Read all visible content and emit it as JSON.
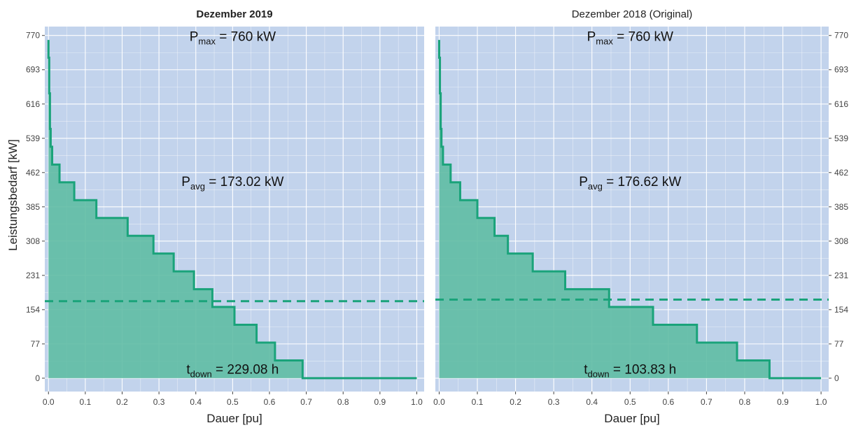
{
  "colors": {
    "panel_bg": "#c2d3ec",
    "grid": "#ffffff",
    "curve": "#1aa37a",
    "fill": "#5fbca4",
    "avg_line": "#1aa37a",
    "text": "#222222",
    "tick": "#444444"
  },
  "chart_data": [
    {
      "type": "area",
      "title": "Dezember 2019",
      "title_bold": true,
      "xlabel": "Dauer [pu]",
      "ylabel": "Leistungsbedarf  [kW]",
      "xlim": [
        -0.01,
        1.02
      ],
      "ylim": [
        -30,
        790
      ],
      "x_ticks": [
        0.0,
        0.1,
        0.2,
        0.3,
        0.4,
        0.5,
        0.6,
        0.7,
        0.8,
        0.9,
        1.0
      ],
      "x_tick_labels": [
        "0.0",
        "0.1",
        "0.2",
        "0.3",
        "0.4",
        "0.5",
        "0.6",
        "0.7",
        "0.8",
        "0.9",
        "1.0"
      ],
      "y_ticks": [
        0,
        77,
        154,
        231,
        308,
        385,
        462,
        539,
        616,
        693,
        770
      ],
      "y_tick_labels": [
        "0",
        "77",
        "154",
        "231",
        "308",
        "385",
        "462",
        "539",
        "616",
        "693",
        "770"
      ],
      "y_axis_side": "left",
      "grid": true,
      "avg_value": 173.02,
      "annotations": {
        "pmax": {
          "base": "P",
          "sub": "max",
          "rest": " = 760 kW",
          "x": 0.5,
          "y": 758
        },
        "pavg": {
          "base": "P",
          "sub": "avg",
          "rest": " = 173.02 kW",
          "x": 0.5,
          "y": 432
        },
        "tdown": {
          "base": "t",
          "sub": "down",
          "rest": " = 229.08 h",
          "x": 0.5,
          "y": 10
        }
      },
      "series": [
        {
          "x": [
            0.0,
            0.0,
            0.002,
            0.002,
            0.004,
            0.004,
            0.006,
            0.006,
            0.01,
            0.01,
            0.03,
            0.03,
            0.07,
            0.07,
            0.13,
            0.13,
            0.215,
            0.215,
            0.285,
            0.285,
            0.34,
            0.34,
            0.395,
            0.395,
            0.445,
            0.445,
            0.505,
            0.505,
            0.565,
            0.565,
            0.615,
            0.615,
            0.69,
            0.69,
            1.0
          ],
          "y": [
            760,
            720,
            720,
            640,
            640,
            560,
            560,
            520,
            520,
            480,
            480,
            440,
            440,
            400,
            400,
            360,
            360,
            320,
            320,
            280,
            280,
            240,
            240,
            200,
            200,
            160,
            160,
            120,
            120,
            80,
            80,
            40,
            40,
            0,
            0
          ]
        }
      ]
    },
    {
      "type": "area",
      "title": "Dezember 2018 (Original)",
      "title_bold": false,
      "xlabel": "Dauer [pu]",
      "ylabel": "",
      "xlim": [
        -0.01,
        1.02
      ],
      "ylim": [
        -30,
        790
      ],
      "x_ticks": [
        0.0,
        0.1,
        0.2,
        0.3,
        0.4,
        0.5,
        0.6,
        0.7,
        0.8,
        0.9,
        1.0
      ],
      "x_tick_labels": [
        "0.0",
        "0.1",
        "0.2",
        "0.3",
        "0.4",
        "0.5",
        "0.6",
        "0.7",
        "0.8",
        "0.9",
        "1.0"
      ],
      "y_ticks": [
        0,
        77,
        154,
        231,
        308,
        385,
        462,
        539,
        616,
        693,
        770
      ],
      "y_tick_labels": [
        "0",
        "77",
        "154",
        "231",
        "308",
        "385",
        "462",
        "539",
        "616",
        "693",
        "770"
      ],
      "y_axis_side": "right",
      "grid": true,
      "avg_value": 176.62,
      "annotations": {
        "pmax": {
          "base": "P",
          "sub": "max",
          "rest": " = 760 kW",
          "x": 0.5,
          "y": 758
        },
        "pavg": {
          "base": "P",
          "sub": "avg",
          "rest": " = 176.62 kW",
          "x": 0.5,
          "y": 432
        },
        "tdown": {
          "base": "t",
          "sub": "down",
          "rest": " = 103.83 h",
          "x": 0.5,
          "y": 10
        }
      },
      "series": [
        {
          "x": [
            0.0,
            0.0,
            0.002,
            0.002,
            0.004,
            0.004,
            0.006,
            0.006,
            0.01,
            0.01,
            0.03,
            0.03,
            0.055,
            0.055,
            0.1,
            0.1,
            0.145,
            0.145,
            0.18,
            0.18,
            0.245,
            0.245,
            0.33,
            0.33,
            0.445,
            0.445,
            0.56,
            0.56,
            0.675,
            0.675,
            0.78,
            0.78,
            0.865,
            0.865,
            1.0
          ],
          "y": [
            760,
            720,
            720,
            640,
            640,
            560,
            560,
            520,
            520,
            480,
            480,
            440,
            440,
            400,
            400,
            360,
            360,
            320,
            320,
            280,
            280,
            240,
            240,
            200,
            200,
            160,
            160,
            120,
            120,
            80,
            80,
            40,
            40,
            0,
            0
          ]
        }
      ]
    }
  ]
}
